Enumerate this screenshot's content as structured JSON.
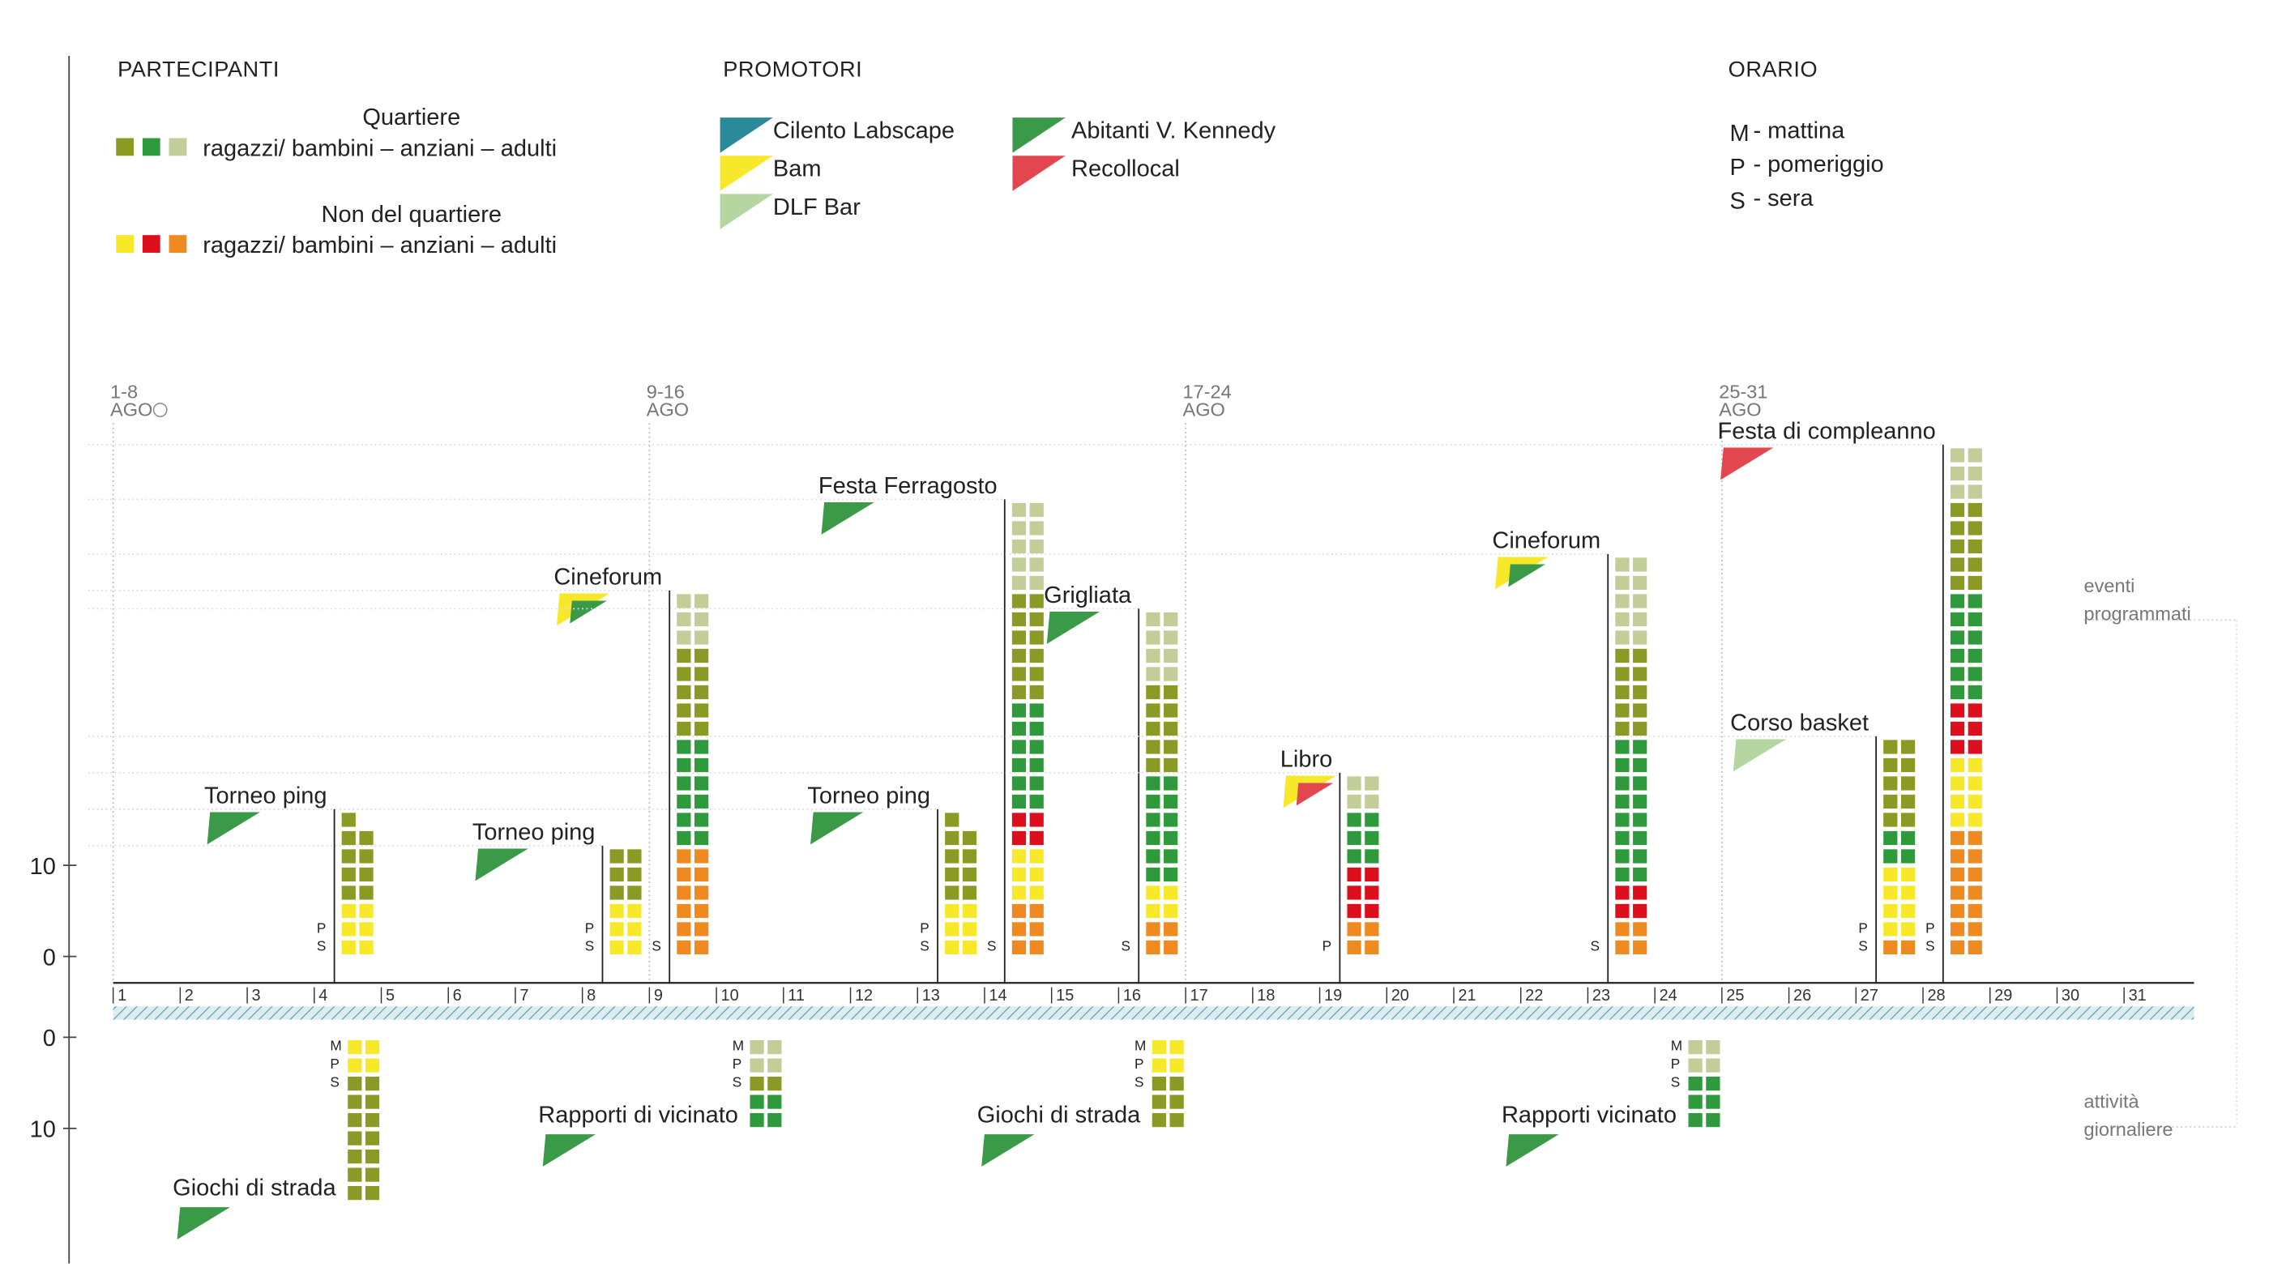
{
  "participants": {
    "title": "PARTECIPANTI",
    "groups": [
      {
        "title": "Quartiere",
        "labels": "ragazzi/ bambini –  anziani –  adulti",
        "colors": [
          "#8b9a24",
          "#2e9a3c",
          "#c3cd97"
        ]
      },
      {
        "title": "Non del quartiere",
        "labels": "ragazzi/ bambini –  anziani –  adulti",
        "colors": [
          "#f7e829",
          "#dd0f1c",
          "#ef8a21"
        ]
      }
    ]
  },
  "promoters": {
    "title": "PROMOTORI",
    "items": [
      {
        "name": "Cilento Labscape",
        "color": "#2a8a9a"
      },
      {
        "name": "Bam",
        "color": "#f7e829"
      },
      {
        "name": "DLF Bar",
        "color": "#b5d6a0"
      },
      {
        "name": "Abitanti  V. Kennedy",
        "color": "#3a9a48"
      },
      {
        "name": "Recollocal",
        "color": "#e2474f"
      }
    ]
  },
  "schedule": {
    "title": "ORARIO",
    "items": [
      {
        "key": "M",
        "label": "- mattina"
      },
      {
        "key": "P",
        "label": "- pomeriggio"
      },
      {
        "key": "S",
        "label": "- sera"
      }
    ]
  },
  "chart_data": {
    "type": "stacked-squares",
    "weeks": [
      {
        "range": "1-8",
        "month": "AGO",
        "start": 1
      },
      {
        "range": "9-16",
        "month": "AGO",
        "start": 9
      },
      {
        "range": "17-24",
        "month": "AGO",
        "start": 17
      },
      {
        "range": "25-31",
        "month": "AGO",
        "start": 25
      }
    ],
    "xlim": [
      1,
      32
    ],
    "xticks": [
      1,
      2,
      3,
      4,
      5,
      6,
      7,
      8,
      9,
      10,
      11,
      12,
      13,
      14,
      15,
      16,
      17,
      18,
      19,
      20,
      21,
      22,
      23,
      24,
      25,
      26,
      27,
      28,
      29,
      30,
      31
    ],
    "ylim": [
      0,
      98.5
    ],
    "yticks": [
      0,
      10
    ],
    "y2lim": [
      0,
      24.5
    ],
    "y2ticks": [
      0,
      10
    ],
    "sections": [
      {
        "lines": [
          "eventi",
          "programmati"
        ]
      },
      {
        "lines": [
          "attività",
          "giornaliere"
        ]
      }
    ],
    "events": [
      {
        "name": "Torneo ping",
        "day": 4,
        "times": [
          "P",
          "S"
        ],
        "promoters": [
          3
        ],
        "segments": [
          {
            "group": 3,
            "count": 6
          },
          {
            "group": 0,
            "count": 9
          }
        ]
      },
      {
        "name": "Torneo ping",
        "day": 8,
        "times": [
          "P",
          "S"
        ],
        "promoters": [
          3
        ],
        "segments": [
          {
            "group": 3,
            "count": 6
          },
          {
            "group": 0,
            "count": 6
          }
        ]
      },
      {
        "name": "Cineforum",
        "day": 9,
        "times": [
          "S"
        ],
        "promoters": [
          1,
          3
        ],
        "segments": [
          {
            "group": 5,
            "count": 12
          },
          {
            "group": 1,
            "count": 12
          },
          {
            "group": 0,
            "count": 10
          },
          {
            "group": 2,
            "count": 6
          }
        ]
      },
      {
        "name": "Torneo ping",
        "day": 13,
        "times": [
          "P",
          "S"
        ],
        "promoters": [
          3
        ],
        "segments": [
          {
            "group": 3,
            "count": 6
          },
          {
            "group": 0,
            "count": 9
          }
        ]
      },
      {
        "name": "Festa Ferragosto",
        "day": 14,
        "times": [
          "S"
        ],
        "promoters": [
          3
        ],
        "segments": [
          {
            "group": 5,
            "count": 6
          },
          {
            "group": 3,
            "count": 6
          },
          {
            "group": 4,
            "count": 4
          },
          {
            "group": 1,
            "count": 12
          },
          {
            "group": 0,
            "count": 12
          },
          {
            "group": 2,
            "count": 10
          }
        ]
      },
      {
        "name": "Grigliata",
        "day": 16,
        "times": [
          "S"
        ],
        "promoters": [
          3
        ],
        "segments": [
          {
            "group": 5,
            "count": 4
          },
          {
            "group": 3,
            "count": 4
          },
          {
            "group": 1,
            "count": 12
          },
          {
            "group": 0,
            "count": 10
          },
          {
            "group": 2,
            "count": 8
          }
        ]
      },
      {
        "name": "Libro",
        "day": 19,
        "times": [
          "P"
        ],
        "promoters": [
          1,
          4
        ],
        "segments": [
          {
            "group": 5,
            "count": 4
          },
          {
            "group": 4,
            "count": 6
          },
          {
            "group": 1,
            "count": 6
          },
          {
            "group": 2,
            "count": 4
          }
        ]
      },
      {
        "name": "Cineforum",
        "day": 23,
        "times": [
          "S"
        ],
        "promoters": [
          1,
          3
        ],
        "segments": [
          {
            "group": 5,
            "count": 4
          },
          {
            "group": 4,
            "count": 4
          },
          {
            "group": 1,
            "count": 16
          },
          {
            "group": 0,
            "count": 10
          },
          {
            "group": 2,
            "count": 10
          }
        ]
      },
      {
        "name": "Corso basket",
        "day": 27,
        "times": [
          "P",
          "S"
        ],
        "promoters": [
          2
        ],
        "segments": [
          {
            "group": 5,
            "count": 2
          },
          {
            "group": 3,
            "count": 8
          },
          {
            "group": 1,
            "count": 4
          },
          {
            "group": 0,
            "count": 10
          }
        ]
      },
      {
        "name": "Festa di compleanno",
        "day": 28,
        "times": [
          "P",
          "S"
        ],
        "promoters": [
          4
        ],
        "segments": [
          {
            "group": 5,
            "count": 14
          },
          {
            "group": 3,
            "count": 8
          },
          {
            "group": 4,
            "count": 6
          },
          {
            "group": 1,
            "count": 12
          },
          {
            "group": 0,
            "count": 10
          },
          {
            "group": 2,
            "count": 6
          }
        ]
      }
    ],
    "daily": [
      {
        "name": "Giochi di strada",
        "day": 4,
        "times": [
          "M",
          "P",
          "S"
        ],
        "promoters": [
          3
        ],
        "segments": [
          {
            "group": 3,
            "count": 4
          },
          {
            "group": 0,
            "count": 14
          }
        ]
      },
      {
        "name": "Rapporti di vicinato",
        "day": 10,
        "times": [
          "M",
          "P",
          "S"
        ],
        "promoters": [
          3
        ],
        "segments": [
          {
            "group": 2,
            "count": 4
          },
          {
            "group": 0,
            "count": 2
          },
          {
            "group": 1,
            "count": 4
          }
        ]
      },
      {
        "name": "Giochi di strada",
        "day": 16,
        "times": [
          "M",
          "P",
          "S"
        ],
        "promoters": [
          3
        ],
        "segments": [
          {
            "group": 3,
            "count": 4
          },
          {
            "group": 0,
            "count": 6
          }
        ]
      },
      {
        "name": "Rapporti vicinato",
        "day": 24,
        "times": [
          "M",
          "P",
          "S"
        ],
        "promoters": [
          3
        ],
        "segments": [
          {
            "group": 2,
            "count": 4
          },
          {
            "group": 1,
            "count": 6
          }
        ]
      }
    ]
  }
}
